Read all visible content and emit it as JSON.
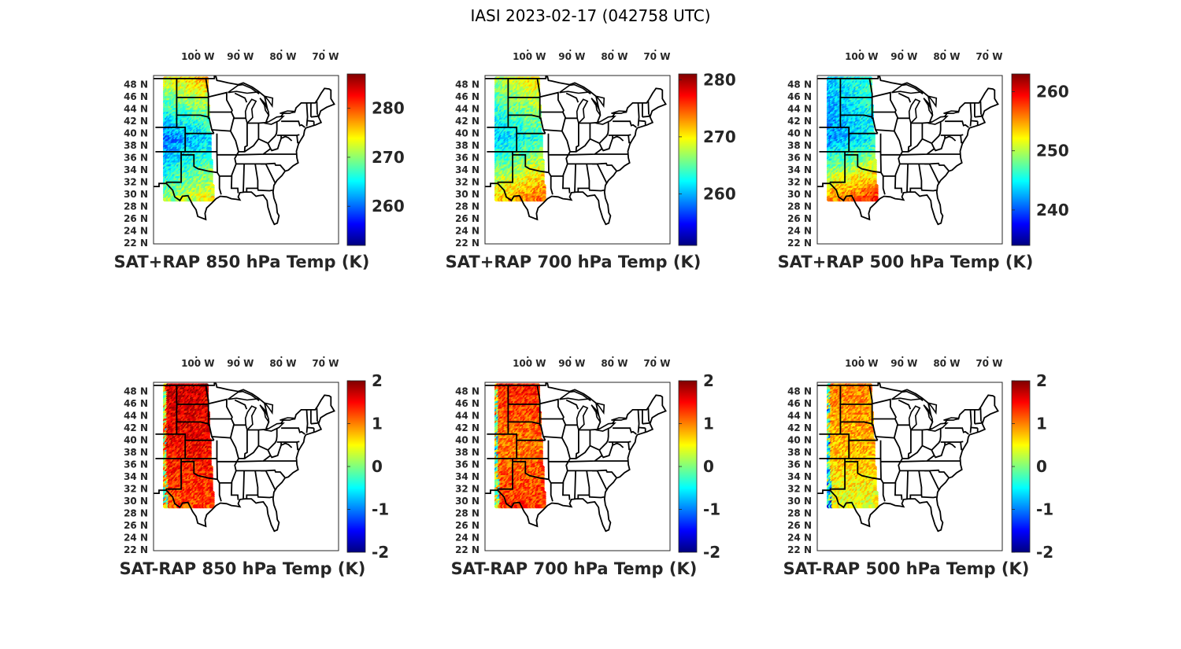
{
  "figure": {
    "title": "IASI 2023-02-17 (042758 UTC)"
  },
  "colors": {
    "state_lines": "#000000",
    "axes_frame": "#262626",
    "colormap": [
      "#00007f",
      "#0000ff",
      "#007fff",
      "#00ffff",
      "#7fff7f",
      "#ffff00",
      "#ff7f00",
      "#ff0000",
      "#7f0000"
    ]
  },
  "chart_data": [
    {
      "type": "heatmap",
      "title": "SAT+RAP 850 hPa Temp (K)",
      "lat_ticks": [
        "48 N",
        "46 N",
        "44 N",
        "42 N",
        "40 N",
        "38 N",
        "36 N",
        "34 N",
        "32 N",
        "30 N",
        "28 N",
        "26 N",
        "24 N",
        "22 N"
      ],
      "lon_ticks": [
        "100 W",
        "90 W",
        "80 W",
        "70 W"
      ],
      "colorbar": {
        "min": 252,
        "max": 287,
        "ticks": [
          "260",
          "270",
          "280"
        ],
        "tick_values": [
          260,
          270,
          280
        ]
      },
      "swath": {
        "lon_range": [
          -107,
          -97
        ],
        "lat_range": [
          29,
          49
        ]
      },
      "field_description_values": {
        "north": 275,
        "central": 262,
        "south": 272
      }
    },
    {
      "type": "heatmap",
      "title": "SAT+RAP 700 hPa Temp (K)",
      "lat_ticks": [
        "48 N",
        "46 N",
        "44 N",
        "42 N",
        "40 N",
        "38 N",
        "36 N",
        "34 N",
        "32 N",
        "30 N",
        "28 N",
        "26 N",
        "24 N",
        "22 N"
      ],
      "lon_ticks": [
        "100 W",
        "90 W",
        "80 W",
        "70 W"
      ],
      "colorbar": {
        "min": 251,
        "max": 281,
        "ticks": [
          "260",
          "270",
          "280"
        ],
        "tick_values": [
          260,
          270,
          280
        ]
      },
      "swath": {
        "lon_range": [
          -107,
          -97
        ],
        "lat_range": [
          29,
          49
        ]
      },
      "field_description_values": {
        "north": 269,
        "central": 262,
        "south": 273
      }
    },
    {
      "type": "heatmap",
      "title": "SAT+RAP 500 hPa Temp (K)",
      "lat_ticks": [
        "48 N",
        "46 N",
        "44 N",
        "42 N",
        "40 N",
        "38 N",
        "36 N",
        "34 N",
        "32 N",
        "30 N",
        "28 N",
        "26 N",
        "24 N",
        "22 N"
      ],
      "lon_ticks": [
        "100 W",
        "90 W",
        "80 W",
        "70 W"
      ],
      "colorbar": {
        "min": 234,
        "max": 263,
        "ticks": [
          "240",
          "250",
          "260"
        ],
        "tick_values": [
          240,
          250,
          260
        ]
      },
      "swath": {
        "lon_range": [
          -107,
          -97
        ],
        "lat_range": [
          29,
          49
        ]
      },
      "field_description_values": {
        "north": 245,
        "central": 243,
        "south": 257
      }
    },
    {
      "type": "heatmap",
      "title": "SAT-RAP 850 hPa Temp (K)",
      "lat_ticks": [
        "48 N",
        "46 N",
        "44 N",
        "42 N",
        "40 N",
        "38 N",
        "36 N",
        "34 N",
        "32 N",
        "30 N",
        "28 N",
        "26 N",
        "24 N",
        "22 N"
      ],
      "lon_ticks": [
        "100 W",
        "90 W",
        "80 W",
        "70 W"
      ],
      "colorbar": {
        "min": -2,
        "max": 2,
        "ticks": [
          "2",
          "1",
          "0",
          "-1",
          "-2"
        ],
        "tick_values": [
          2,
          1,
          0,
          -1,
          -2
        ]
      },
      "swath": {
        "lon_range": [
          -107,
          -97
        ],
        "lat_range": [
          29,
          49
        ]
      },
      "field_description_values": {
        "north": 1.7,
        "central": 1.5,
        "south": 1.2
      }
    },
    {
      "type": "heatmap",
      "title": "SAT-RAP 700 hPa Temp (K)",
      "lat_ticks": [
        "48 N",
        "46 N",
        "44 N",
        "42 N",
        "40 N",
        "38 N",
        "36 N",
        "34 N",
        "32 N",
        "30 N",
        "28 N",
        "26 N",
        "24 N",
        "22 N"
      ],
      "lon_ticks": [
        "100 W",
        "90 W",
        "80 W",
        "70 W"
      ],
      "colorbar": {
        "min": -2,
        "max": 2,
        "ticks": [
          "2",
          "1",
          "0",
          "-1",
          "-2"
        ],
        "tick_values": [
          2,
          1,
          0,
          -1,
          -2
        ]
      },
      "swath": {
        "lon_range": [
          -107,
          -97
        ],
        "lat_range": [
          29,
          49
        ]
      },
      "field_description_values": {
        "north": 1.4,
        "central": 1.0,
        "south": 1.3
      }
    },
    {
      "type": "heatmap",
      "title": "SAT-RAP 500 hPa Temp (K)",
      "lat_ticks": [
        "48 N",
        "46 N",
        "44 N",
        "42 N",
        "40 N",
        "38 N",
        "36 N",
        "34 N",
        "32 N",
        "30 N",
        "28 N",
        "26 N",
        "24 N",
        "22 N"
      ],
      "lon_ticks": [
        "100 W",
        "90 W",
        "80 W",
        "70 W"
      ],
      "colorbar": {
        "min": -2,
        "max": 2,
        "ticks": [
          "2",
          "1",
          "0",
          "-1",
          "-2"
        ],
        "tick_values": [
          2,
          1,
          0,
          -1,
          -2
        ]
      },
      "swath": {
        "lon_range": [
          -107,
          -97
        ],
        "lat_range": [
          29,
          49
        ]
      },
      "field_description_values": {
        "north": 1.0,
        "central": 0.8,
        "south": 0.4
      }
    }
  ]
}
